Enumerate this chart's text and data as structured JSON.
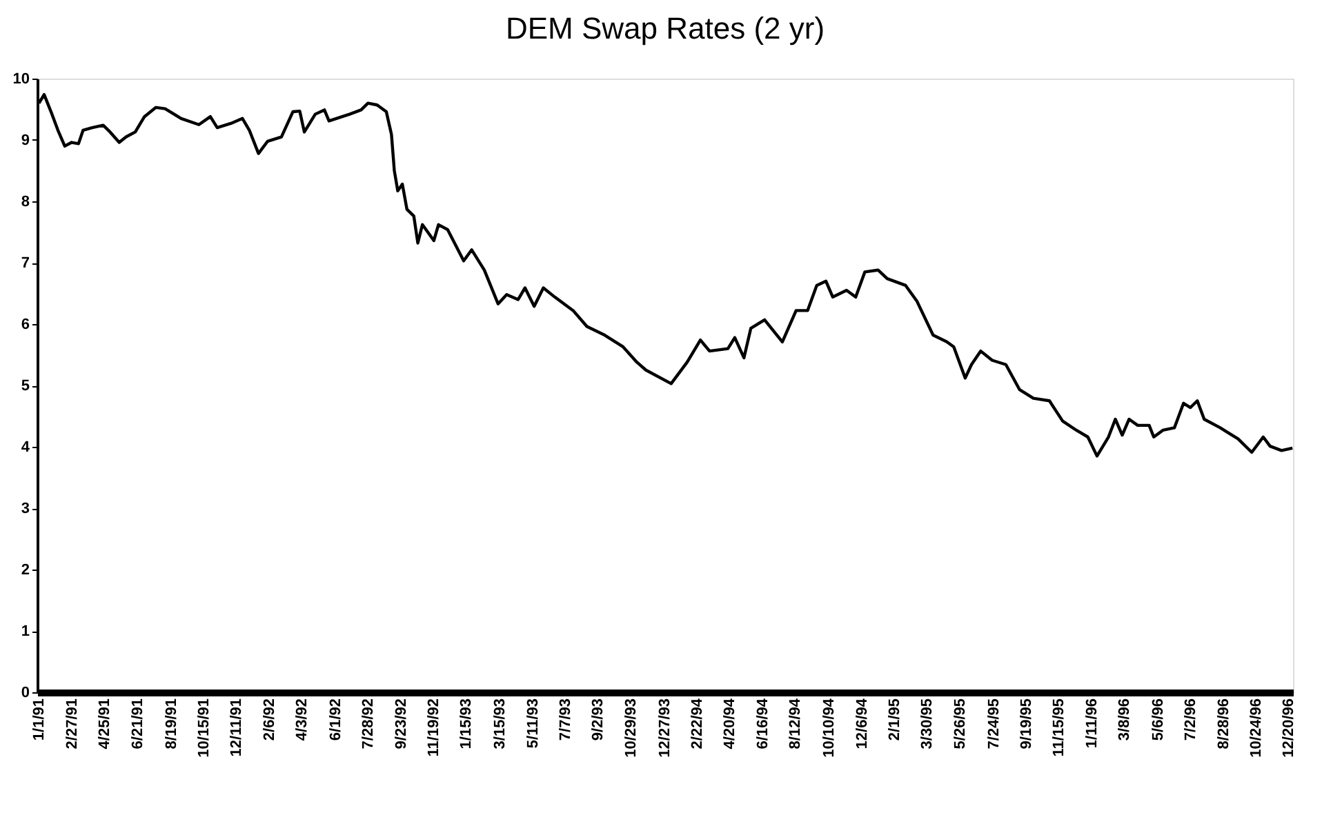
{
  "chart_data": {
    "type": "line",
    "title": "DEM Swap Rates (2 yr)",
    "x": [
      "1991-01-01",
      "1991-01-10",
      "1991-01-22",
      "1991-02-03",
      "1991-02-15",
      "1991-02-27",
      "1991-03-11",
      "1991-03-19",
      "1991-04-04",
      "1991-04-23",
      "1991-05-05",
      "1991-05-21",
      "1991-06-02",
      "1991-06-18",
      "1991-07-04",
      "1991-07-24",
      "1991-08-09",
      "1991-09-06",
      "1991-10-07",
      "1991-10-27",
      "1991-11-08",
      "1991-12-02",
      "1991-12-22",
      "1992-01-03",
      "1992-01-19",
      "1992-02-04",
      "1992-02-28",
      "1992-03-19",
      "1992-03-31",
      "1992-04-08",
      "1992-04-27",
      "1992-05-13",
      "1992-05-21",
      "1992-06-26",
      "1992-07-16",
      "1992-07-28",
      "1992-08-13",
      "1992-08-29",
      "1992-09-07",
      "1992-09-12",
      "1992-09-18",
      "1992-09-26",
      "1992-10-04",
      "1992-10-16",
      "1992-10-23",
      "1992-10-31",
      "1992-11-20",
      "1992-11-28",
      "1992-12-14",
      "1993-01-11",
      "1993-01-25",
      "1993-02-16",
      "1993-03-12",
      "1993-03-27",
      "1993-04-16",
      "1993-04-28",
      "1993-05-14",
      "1993-05-30",
      "1993-06-19",
      "1993-07-21",
      "1993-08-14",
      "1993-09-14",
      "1993-10-16",
      "1993-11-09",
      "1993-11-25",
      "1994-01-08",
      "1994-02-05",
      "1994-02-28",
      "1994-03-16",
      "1994-04-17",
      "1994-04-29",
      "1994-05-15",
      "1994-05-27",
      "1994-06-20",
      "1994-07-21",
      "1994-08-14",
      "1994-09-03",
      "1994-09-19",
      "1994-10-05",
      "1994-10-17",
      "1994-11-10",
      "1994-11-26",
      "1994-12-12",
      "1995-01-04",
      "1995-01-20",
      "1995-02-21",
      "1995-03-13",
      "1995-04-10",
      "1995-05-04",
      "1995-05-16",
      "1995-06-05",
      "1995-06-16",
      "1995-07-02",
      "1995-07-22",
      "1995-08-15",
      "1995-09-08",
      "1995-10-02",
      "1995-10-30",
      "1995-11-22",
      "1995-12-16",
      "1996-01-05",
      "1996-01-21",
      "1996-02-10",
      "1996-02-22",
      "1996-03-05",
      "1996-03-17",
      "1996-04-01",
      "1996-04-21",
      "1996-04-29",
      "1996-05-15",
      "1996-06-04",
      "1996-06-20",
      "1996-07-02",
      "1996-07-14",
      "1996-07-26",
      "1996-08-23",
      "1996-09-23",
      "1996-10-17",
      "1996-11-06",
      "1996-11-18",
      "1996-12-08",
      "1996-12-27"
    ],
    "series": [
      {
        "color": "#000000",
        "values": [
          9.6,
          9.74,
          9.46,
          9.16,
          8.9,
          8.96,
          8.94,
          9.16,
          9.2,
          9.24,
          9.13,
          8.96,
          9.05,
          9.13,
          9.38,
          9.53,
          9.51,
          9.35,
          9.25,
          9.38,
          9.2,
          9.27,
          9.35,
          9.16,
          8.78,
          8.98,
          9.05,
          9.46,
          9.47,
          9.13,
          9.42,
          9.49,
          9.31,
          9.42,
          9.49,
          9.6,
          9.57,
          9.46,
          9.09,
          8.5,
          8.17,
          8.28,
          7.87,
          7.76,
          7.32,
          7.62,
          7.36,
          7.62,
          7.54,
          7.03,
          7.21,
          6.88,
          6.33,
          6.48,
          6.4,
          6.59,
          6.29,
          6.59,
          6.44,
          6.22,
          5.96,
          5.82,
          5.63,
          5.38,
          5.25,
          5.03,
          5.38,
          5.74,
          5.56,
          5.6,
          5.78,
          5.45,
          5.93,
          6.07,
          5.71,
          6.22,
          6.22,
          6.63,
          6.7,
          6.44,
          6.55,
          6.44,
          6.85,
          6.88,
          6.74,
          6.63,
          6.37,
          5.82,
          5.71,
          5.63,
          5.12,
          5.34,
          5.56,
          5.41,
          5.34,
          4.93,
          4.79,
          4.75,
          4.42,
          4.27,
          4.16,
          3.85,
          4.16,
          4.45,
          4.19,
          4.45,
          4.35,
          4.35,
          4.16,
          4.27,
          4.31,
          4.71,
          4.64,
          4.75,
          4.45,
          4.31,
          4.13,
          3.91,
          4.16,
          4.01,
          3.94,
          3.98
        ]
      }
    ],
    "xlim": [
      "1990-12-29",
      "1996-12-28"
    ],
    "xticks": [
      {
        "value": "1991-01-01",
        "label": "1/1/91"
      },
      {
        "value": "1991-02-27",
        "label": "2/27/91"
      },
      {
        "value": "1991-04-25",
        "label": "4/25/91"
      },
      {
        "value": "1991-06-21",
        "label": "6/21/91"
      },
      {
        "value": "1991-08-19",
        "label": "8/19/91"
      },
      {
        "value": "1991-10-15",
        "label": "10/15/91"
      },
      {
        "value": "1991-12-11",
        "label": "12/11/91"
      },
      {
        "value": "1992-02-06",
        "label": "2/6/92"
      },
      {
        "value": "1992-04-03",
        "label": "4/3/92"
      },
      {
        "value": "1992-06-01",
        "label": "6/1/92"
      },
      {
        "value": "1992-07-28",
        "label": "7/28/92"
      },
      {
        "value": "1992-09-23",
        "label": "9/23/92"
      },
      {
        "value": "1992-11-19",
        "label": "11/19/92"
      },
      {
        "value": "1993-01-15",
        "label": "1/15/93"
      },
      {
        "value": "1993-03-15",
        "label": "3/15/93"
      },
      {
        "value": "1993-05-11",
        "label": "5/11/93"
      },
      {
        "value": "1993-07-07",
        "label": "7/7/93"
      },
      {
        "value": "1993-09-02",
        "label": "9/2/93"
      },
      {
        "value": "1993-10-29",
        "label": "10/29/93"
      },
      {
        "value": "1993-12-27",
        "label": "12/27/93"
      },
      {
        "value": "1994-02-22",
        "label": "2/22/94"
      },
      {
        "value": "1994-04-20",
        "label": "4/20/94"
      },
      {
        "value": "1994-06-16",
        "label": "6/16/94"
      },
      {
        "value": "1994-08-12",
        "label": "8/12/94"
      },
      {
        "value": "1994-10-10",
        "label": "10/10/94"
      },
      {
        "value": "1994-12-06",
        "label": "12/6/94"
      },
      {
        "value": "1995-02-01",
        "label": "2/1/95"
      },
      {
        "value": "1995-03-30",
        "label": "3/30/95"
      },
      {
        "value": "1995-05-26",
        "label": "5/26/95"
      },
      {
        "value": "1995-07-24",
        "label": "7/24/95"
      },
      {
        "value": "1995-09-19",
        "label": "9/19/95"
      },
      {
        "value": "1995-11-15",
        "label": "11/15/95"
      },
      {
        "value": "1996-01-11",
        "label": "1/11/96"
      },
      {
        "value": "1996-03-08",
        "label": "3/8/96"
      },
      {
        "value": "1996-05-06",
        "label": "5/6/96"
      },
      {
        "value": "1996-07-02",
        "label": "7/2/96"
      },
      {
        "value": "1996-08-28",
        "label": "8/28/96"
      },
      {
        "value": "1996-10-24",
        "label": "10/24/96"
      },
      {
        "value": "1996-12-20",
        "label": "12/20/96"
      }
    ],
    "ylim": [
      0,
      10
    ],
    "yticks": [
      0,
      1,
      2,
      3,
      4,
      5,
      6,
      7,
      8,
      9,
      10
    ],
    "grid": false,
    "legend": false,
    "marker": "none",
    "line_style": "solid"
  }
}
